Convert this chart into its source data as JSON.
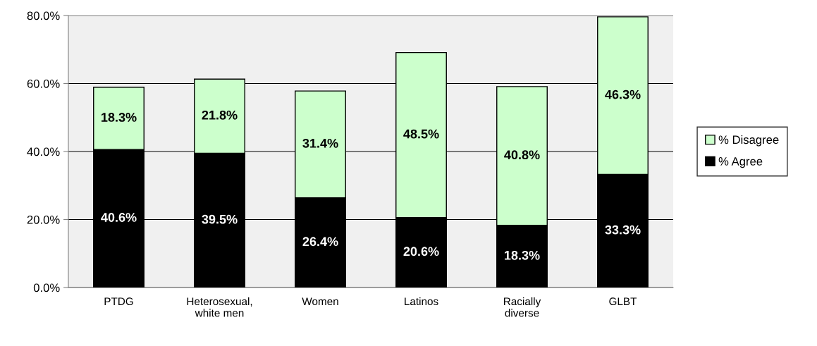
{
  "chart_data": {
    "type": "bar",
    "stacked": true,
    "categories": [
      "PTDG",
      "Heterosexual,\nwhite men",
      "Women",
      "Latinos",
      "Racially\ndiverse",
      "GLBT"
    ],
    "series": [
      {
        "name": "% Agree",
        "color": "#000000",
        "values": [
          40.6,
          39.5,
          26.4,
          20.6,
          18.3,
          33.3
        ],
        "value_labels": [
          "40.6%",
          "39.5%",
          "26.4%",
          "20.6%",
          "18.3%",
          "33.3%"
        ]
      },
      {
        "name": "% Disagree",
        "color": "#ccffcc",
        "values": [
          18.3,
          21.8,
          31.4,
          48.5,
          40.8,
          46.3
        ],
        "value_labels": [
          "18.3%",
          "21.8%",
          "31.4%",
          "48.5%",
          "40.8%",
          "46.3%"
        ]
      }
    ],
    "ylim": [
      0,
      80
    ],
    "yticks": [
      {
        "value": 0,
        "label": "0.0%"
      },
      {
        "value": 20,
        "label": "20.0%"
      },
      {
        "value": 40,
        "label": "40.0%"
      },
      {
        "value": 60,
        "label": "60.0%"
      },
      {
        "value": 80,
        "label": "80.0%"
      }
    ],
    "grid": "y",
    "legend": "right"
  }
}
